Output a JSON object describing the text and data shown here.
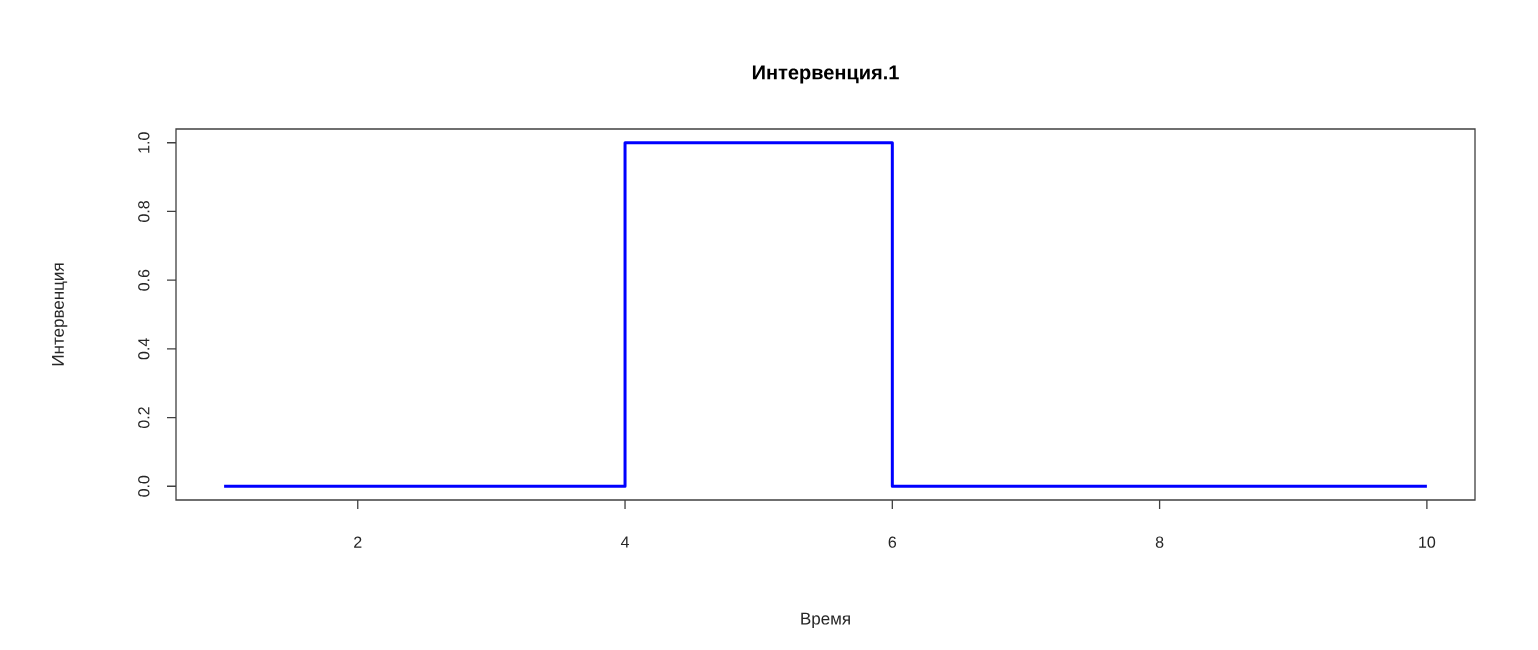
{
  "chart_data": {
    "type": "step",
    "title": "Интервенция.1",
    "xlabel": "Время",
    "ylabel": "Интервенция",
    "x": [
      1,
      2,
      3,
      4,
      5,
      6,
      7,
      8,
      9,
      10
    ],
    "series": [
      {
        "color": "#0000ff",
        "values": [
          0,
          0,
          0,
          1,
          1,
          0,
          0,
          0,
          0,
          0
        ]
      }
    ],
    "xlim": [
      0.64,
      10.36
    ],
    "ylim": [
      -0.04,
      1.04
    ],
    "xticks": [
      2,
      4,
      6,
      8,
      10
    ],
    "yticks": [
      {
        "value": 0,
        "label": "0.0"
      },
      0.2,
      0.4,
      0.6,
      0.8,
      {
        "value": 1,
        "label": "1.0"
      }
    ],
    "marker": "none",
    "line_style": "solid"
  }
}
